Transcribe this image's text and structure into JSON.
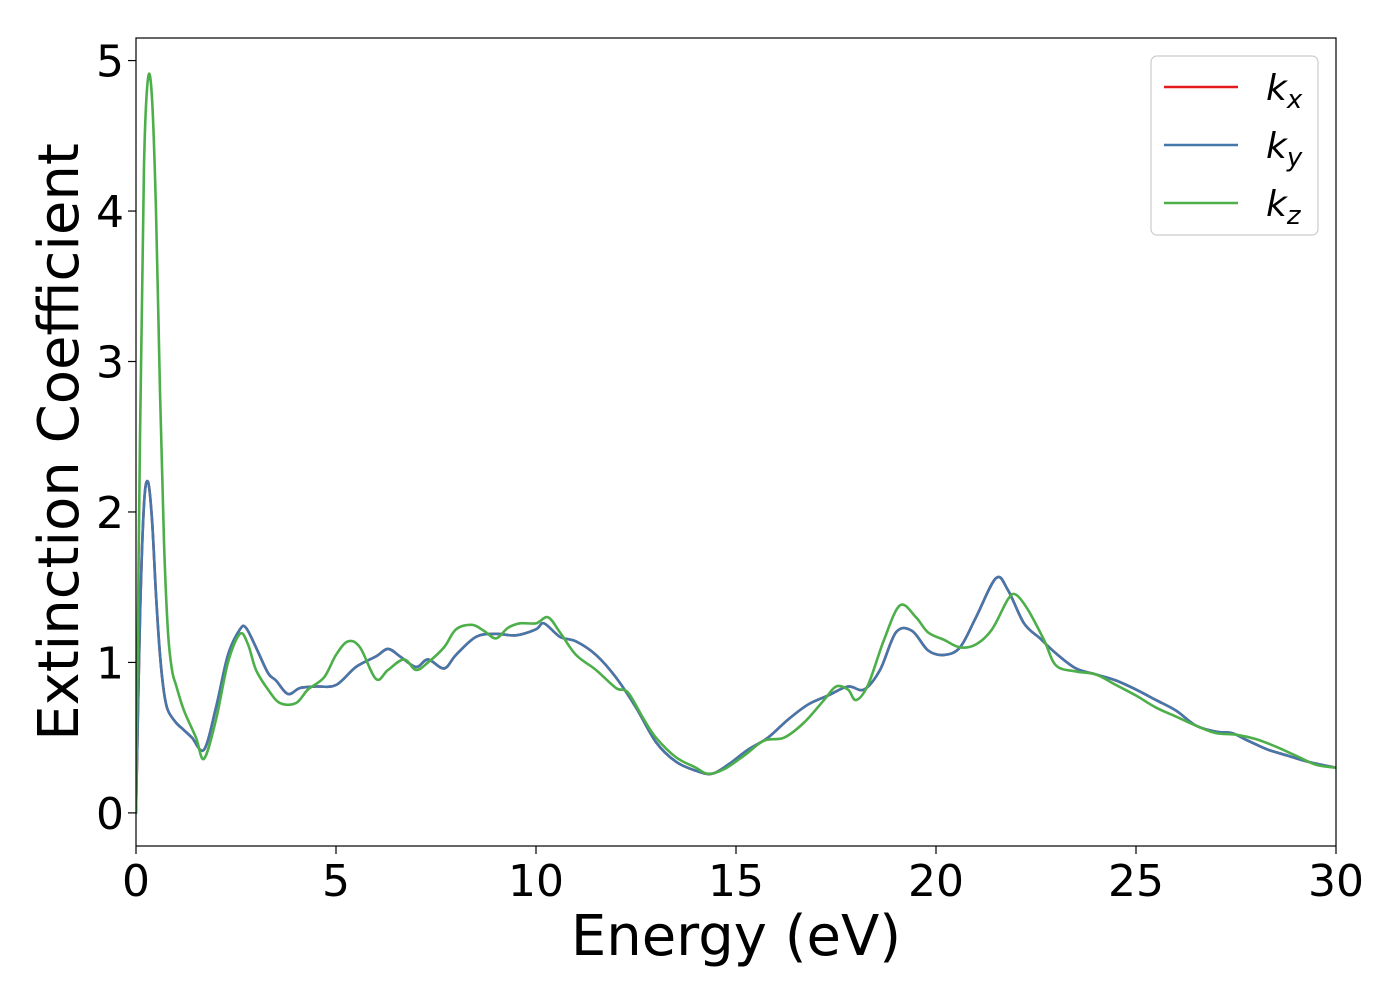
{
  "chart_data": {
    "type": "line",
    "title": "",
    "xlabel": "Energy (eV)",
    "ylabel": "Extinction Coefficient",
    "xlim": [
      0,
      30
    ],
    "ylim": [
      -0.22,
      5.15
    ],
    "xticks": [
      0,
      5,
      10,
      15,
      20,
      25,
      30
    ],
    "yticks": [
      0,
      1,
      2,
      3,
      4,
      5
    ],
    "grid": false,
    "legend_position": "top-right",
    "series": [
      {
        "name": "k_x",
        "label_base": "k",
        "label_sub": "x",
        "color": "#e41a1c",
        "x": [
          0,
          0.1,
          0.2,
          0.3,
          0.4,
          0.5,
          0.6,
          0.7,
          0.8,
          1.0,
          1.2,
          1.4,
          1.7,
          2.0,
          2.3,
          2.6,
          2.75,
          3.0,
          3.3,
          3.5,
          3.8,
          4.1,
          4.5,
          5.0,
          5.5,
          6.0,
          6.3,
          6.6,
          7.0,
          7.3,
          7.7,
          8.0,
          8.5,
          9.0,
          9.5,
          10.0,
          10.2,
          10.6,
          11.0,
          11.5,
          12.0,
          12.5,
          13.0,
          13.5,
          14.0,
          14.4,
          14.8,
          15.3,
          15.8,
          16.3,
          16.8,
          17.3,
          17.8,
          18.2,
          18.6,
          19.0,
          19.4,
          19.8,
          20.2,
          20.6,
          21.0,
          21.5,
          21.8,
          22.2,
          22.6,
          23.0,
          23.5,
          24.0,
          24.5,
          25.0,
          25.5,
          26.0,
          26.5,
          27.0,
          27.4,
          27.8,
          28.3,
          28.8,
          29.3,
          30.0
        ],
        "y": [
          0,
          1.3,
          2.05,
          2.2,
          1.95,
          1.45,
          1.05,
          0.8,
          0.68,
          0.6,
          0.55,
          0.5,
          0.42,
          0.7,
          1.05,
          1.22,
          1.23,
          1.1,
          0.93,
          0.88,
          0.79,
          0.83,
          0.84,
          0.85,
          0.97,
          1.04,
          1.09,
          1.04,
          0.97,
          1.02,
          0.96,
          1.05,
          1.17,
          1.19,
          1.18,
          1.22,
          1.26,
          1.17,
          1.14,
          1.05,
          0.9,
          0.7,
          0.47,
          0.34,
          0.28,
          0.26,
          0.32,
          0.42,
          0.5,
          0.62,
          0.72,
          0.78,
          0.84,
          0.82,
          0.95,
          1.2,
          1.21,
          1.08,
          1.05,
          1.1,
          1.3,
          1.56,
          1.48,
          1.26,
          1.16,
          1.06,
          0.96,
          0.92,
          0.88,
          0.82,
          0.75,
          0.68,
          0.58,
          0.54,
          0.53,
          0.48,
          0.42,
          0.38,
          0.34,
          0.3
        ]
      },
      {
        "name": "k_y",
        "label_base": "k",
        "label_sub": "y",
        "color": "#4477aa",
        "x": [
          0,
          0.1,
          0.2,
          0.3,
          0.4,
          0.5,
          0.6,
          0.7,
          0.8,
          1.0,
          1.2,
          1.4,
          1.7,
          2.0,
          2.3,
          2.6,
          2.75,
          3.0,
          3.3,
          3.5,
          3.8,
          4.1,
          4.5,
          5.0,
          5.5,
          6.0,
          6.3,
          6.6,
          7.0,
          7.3,
          7.7,
          8.0,
          8.5,
          9.0,
          9.5,
          10.0,
          10.2,
          10.6,
          11.0,
          11.5,
          12.0,
          12.5,
          13.0,
          13.5,
          14.0,
          14.4,
          14.8,
          15.3,
          15.8,
          16.3,
          16.8,
          17.3,
          17.8,
          18.2,
          18.6,
          19.0,
          19.4,
          19.8,
          20.2,
          20.6,
          21.0,
          21.5,
          21.8,
          22.2,
          22.6,
          23.0,
          23.5,
          24.0,
          24.5,
          25.0,
          25.5,
          26.0,
          26.5,
          27.0,
          27.4,
          27.8,
          28.3,
          28.8,
          29.3,
          30.0
        ],
        "y": [
          0,
          1.3,
          2.05,
          2.2,
          1.95,
          1.45,
          1.05,
          0.8,
          0.68,
          0.6,
          0.55,
          0.5,
          0.42,
          0.7,
          1.05,
          1.22,
          1.23,
          1.1,
          0.93,
          0.88,
          0.79,
          0.83,
          0.84,
          0.85,
          0.97,
          1.04,
          1.09,
          1.04,
          0.97,
          1.02,
          0.96,
          1.05,
          1.17,
          1.19,
          1.18,
          1.22,
          1.26,
          1.17,
          1.14,
          1.05,
          0.9,
          0.7,
          0.47,
          0.34,
          0.28,
          0.26,
          0.32,
          0.42,
          0.5,
          0.62,
          0.72,
          0.78,
          0.84,
          0.82,
          0.95,
          1.2,
          1.21,
          1.08,
          1.05,
          1.1,
          1.3,
          1.56,
          1.48,
          1.26,
          1.16,
          1.06,
          0.96,
          0.92,
          0.88,
          0.82,
          0.75,
          0.68,
          0.58,
          0.54,
          0.53,
          0.48,
          0.42,
          0.38,
          0.34,
          0.3
        ]
      },
      {
        "name": "k_z",
        "label_base": "k",
        "label_sub": "z",
        "color": "#4daf4a",
        "x": [
          0,
          0.1,
          0.2,
          0.3,
          0.4,
          0.5,
          0.6,
          0.7,
          0.8,
          0.9,
          1.0,
          1.2,
          1.5,
          1.7,
          2.0,
          2.3,
          2.6,
          2.8,
          3.0,
          3.3,
          3.6,
          4.0,
          4.3,
          4.7,
          5.0,
          5.3,
          5.6,
          6.0,
          6.3,
          6.7,
          7.0,
          7.3,
          7.7,
          8.0,
          8.4,
          8.7,
          9.0,
          9.3,
          9.6,
          10.0,
          10.3,
          10.6,
          11.0,
          11.5,
          12.0,
          12.3,
          12.7,
          13.0,
          13.5,
          14.0,
          14.3,
          14.7,
          15.2,
          15.7,
          16.2,
          16.7,
          17.2,
          17.5,
          17.8,
          18.0,
          18.3,
          18.7,
          19.1,
          19.5,
          19.8,
          20.2,
          20.6,
          21.0,
          21.4,
          21.8,
          22.0,
          22.3,
          22.7,
          23.0,
          23.5,
          24.0,
          24.5,
          25.0,
          25.5,
          26.0,
          26.5,
          27.0,
          27.5,
          28.0,
          28.5,
          29.0,
          29.5,
          30.0
        ],
        "y": [
          0,
          2.5,
          4.3,
          4.88,
          4.75,
          4.0,
          2.8,
          1.8,
          1.2,
          0.95,
          0.85,
          0.68,
          0.5,
          0.36,
          0.62,
          1.0,
          1.19,
          1.12,
          0.95,
          0.82,
          0.73,
          0.73,
          0.82,
          0.9,
          1.05,
          1.14,
          1.1,
          0.89,
          0.95,
          1.02,
          0.95,
          1.0,
          1.1,
          1.22,
          1.25,
          1.21,
          1.16,
          1.23,
          1.26,
          1.26,
          1.3,
          1.2,
          1.05,
          0.95,
          0.83,
          0.8,
          0.62,
          0.5,
          0.37,
          0.3,
          0.26,
          0.29,
          0.38,
          0.48,
          0.5,
          0.6,
          0.75,
          0.84,
          0.82,
          0.75,
          0.85,
          1.15,
          1.38,
          1.3,
          1.2,
          1.15,
          1.1,
          1.12,
          1.22,
          1.42,
          1.45,
          1.35,
          1.15,
          0.98,
          0.94,
          0.92,
          0.85,
          0.78,
          0.7,
          0.64,
          0.58,
          0.53,
          0.52,
          0.49,
          0.44,
          0.38,
          0.32,
          0.3
        ]
      }
    ]
  }
}
